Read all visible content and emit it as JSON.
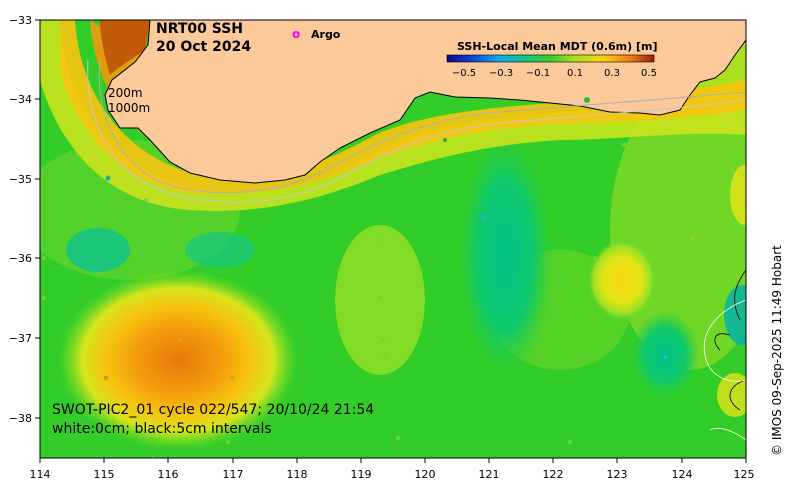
{
  "map": {
    "title_line1": "NRT00 SSH",
    "title_line2": "20 Oct 2024",
    "argo_marker": "o",
    "argo_label": "Argo",
    "isobath_200": "200m",
    "isobath_1000": "1000m",
    "caption_line1": "SWOT-PIC2_01 cycle 022/547; 20/10/24 21:54",
    "caption_line2": "white:0cm; black:5cm intervals",
    "credit": "© IMOS 09-Sep-2025 11:49 Hobart",
    "lon_ticks": [
      "114",
      "115",
      "116",
      "117",
      "118",
      "119",
      "120",
      "121",
      "122",
      "123",
      "124",
      "125"
    ],
    "lat_ticks": [
      "−33",
      "−34",
      "−35",
      "−36",
      "−37",
      "−38"
    ],
    "colors": {
      "land": "#fcc99b",
      "ocean_base": "#32cd28",
      "argo": "#ff00ff"
    }
  },
  "colorbar": {
    "title": "SSH-Local Mean MDT (0.6m) [m]",
    "ticks": [
      "−0.5",
      "−0.3",
      "−0.1",
      "0.1",
      "0.3",
      "0.5"
    ],
    "range": [
      -0.5,
      0.5
    ]
  }
}
